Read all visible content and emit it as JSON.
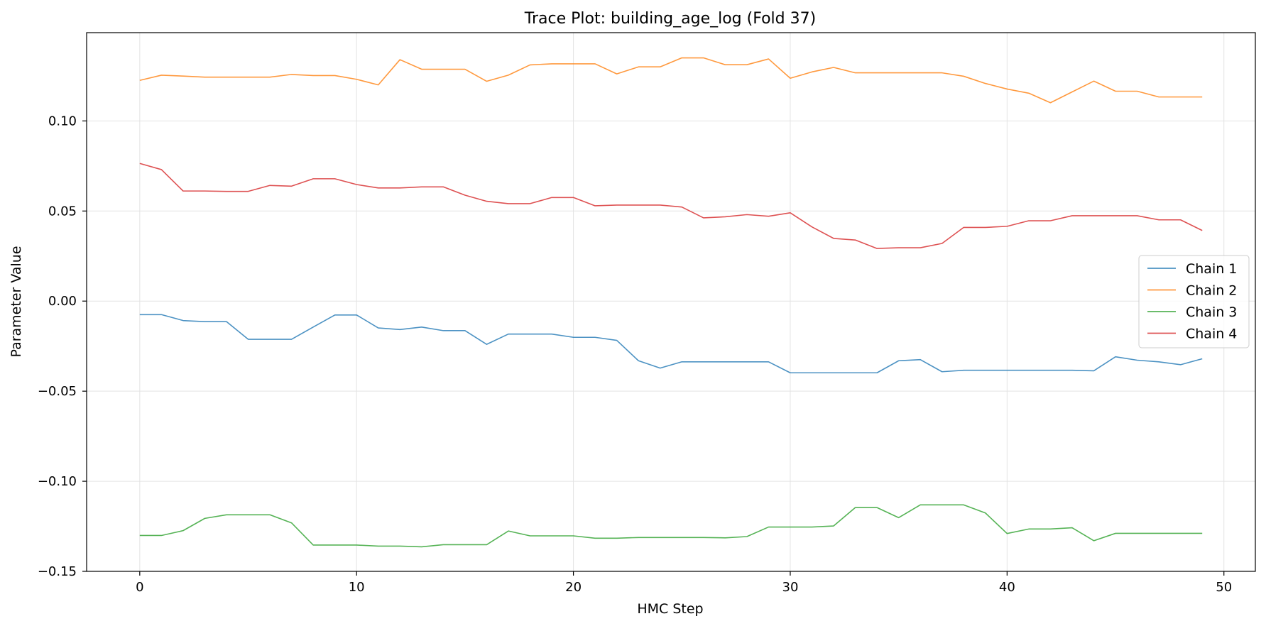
{
  "chart_data": {
    "type": "line",
    "title": "Trace Plot: building_age_log (Fold 37)",
    "xlabel": "HMC Step",
    "ylabel": "Parameter Value",
    "xlim": [
      -2.45,
      51.45
    ],
    "ylim": [
      -0.15,
      0.149
    ],
    "xticks": [
      0,
      10,
      20,
      30,
      40,
      50
    ],
    "xtick_labels": [
      "0",
      "10",
      "20",
      "30",
      "40",
      "50"
    ],
    "yticks": [
      -0.15,
      -0.1,
      -0.05,
      0.0,
      0.05,
      0.1
    ],
    "ytick_labels": [
      "−0.15",
      "−0.10",
      "−0.05",
      "0.00",
      "0.05",
      "0.10"
    ],
    "grid": true,
    "legend_position": "center-right",
    "x": [
      0,
      1,
      2,
      3,
      4,
      5,
      6,
      7,
      8,
      9,
      10,
      11,
      12,
      13,
      14,
      15,
      16,
      17,
      18,
      19,
      20,
      21,
      22,
      23,
      24,
      25,
      26,
      27,
      28,
      29,
      30,
      31,
      32,
      33,
      34,
      35,
      36,
      37,
      38,
      39,
      40,
      41,
      42,
      43,
      44,
      45,
      46,
      47,
      48,
      49
    ],
    "series": [
      {
        "name": "Chain 1",
        "color": "#1f77b4",
        "values": [
          -0.0075,
          -0.0075,
          -0.0108,
          -0.0114,
          -0.0114,
          -0.0212,
          -0.0212,
          -0.0212,
          -0.0144,
          -0.0077,
          -0.0077,
          -0.0149,
          -0.0158,
          -0.0144,
          -0.0164,
          -0.0164,
          -0.024,
          -0.0183,
          -0.0183,
          -0.0183,
          -0.0201,
          -0.0201,
          -0.0218,
          -0.0331,
          -0.0372,
          -0.0337,
          -0.0337,
          -0.0337,
          -0.0337,
          -0.0337,
          -0.0398,
          -0.0398,
          -0.0398,
          -0.0398,
          -0.0398,
          -0.0331,
          -0.0325,
          -0.0392,
          -0.0384,
          -0.0384,
          -0.0384,
          -0.0384,
          -0.0384,
          -0.0384,
          -0.0387,
          -0.0309,
          -0.0328,
          -0.0337,
          -0.0353,
          -0.032
        ]
      },
      {
        "name": "Chain 2",
        "color": "#ff7f0e",
        "values": [
          0.1225,
          0.1254,
          0.1249,
          0.1243,
          0.1243,
          0.1243,
          0.1243,
          0.1258,
          0.1252,
          0.1252,
          0.1231,
          0.12,
          0.134,
          0.1287,
          0.1287,
          0.1287,
          0.122,
          0.1254,
          0.1311,
          0.1317,
          0.1317,
          0.1317,
          0.1261,
          0.13,
          0.13,
          0.135,
          0.135,
          0.1312,
          0.1312,
          0.1344,
          0.1237,
          0.1272,
          0.1297,
          0.1267,
          0.1267,
          0.1267,
          0.1267,
          0.1267,
          0.1248,
          0.1208,
          0.1177,
          0.1154,
          0.1101,
          0.1161,
          0.1221,
          0.1165,
          0.1165,
          0.1133,
          0.1133,
          0.1133
        ]
      },
      {
        "name": "Chain 3",
        "color": "#2ca02c",
        "values": [
          -0.1301,
          -0.1301,
          -0.1274,
          -0.1206,
          -0.1186,
          -0.1186,
          -0.1186,
          -0.1231,
          -0.1354,
          -0.1354,
          -0.1354,
          -0.136,
          -0.136,
          -0.1364,
          -0.1352,
          -0.1352,
          -0.1352,
          -0.1276,
          -0.1303,
          -0.1303,
          -0.1303,
          -0.1316,
          -0.1316,
          -0.1312,
          -0.1312,
          -0.1312,
          -0.1312,
          -0.1314,
          -0.1307,
          -0.1254,
          -0.1254,
          -0.1254,
          -0.1248,
          -0.1146,
          -0.1146,
          -0.1202,
          -0.1131,
          -0.1131,
          -0.1131,
          -0.1176,
          -0.129,
          -0.1265,
          -0.1265,
          -0.1258,
          -0.133,
          -0.1289,
          -0.1289,
          -0.1289,
          -0.1289,
          -0.1289
        ]
      },
      {
        "name": "Chain 4",
        "color": "#d62728",
        "values": [
          0.0764,
          0.073,
          0.0611,
          0.0611,
          0.0609,
          0.0609,
          0.0642,
          0.0638,
          0.0679,
          0.0679,
          0.0647,
          0.0628,
          0.0628,
          0.0634,
          0.0634,
          0.0588,
          0.0554,
          0.0541,
          0.0541,
          0.0575,
          0.0575,
          0.0529,
          0.0533,
          0.0533,
          0.0533,
          0.0522,
          0.0462,
          0.0468,
          0.048,
          0.0471,
          0.049,
          0.0412,
          0.0348,
          0.0339,
          0.0292,
          0.0296,
          0.0296,
          0.032,
          0.0409,
          0.0409,
          0.0415,
          0.0446,
          0.0446,
          0.0474,
          0.0474,
          0.0474,
          0.0474,
          0.0451,
          0.0451,
          0.0392
        ]
      }
    ]
  }
}
